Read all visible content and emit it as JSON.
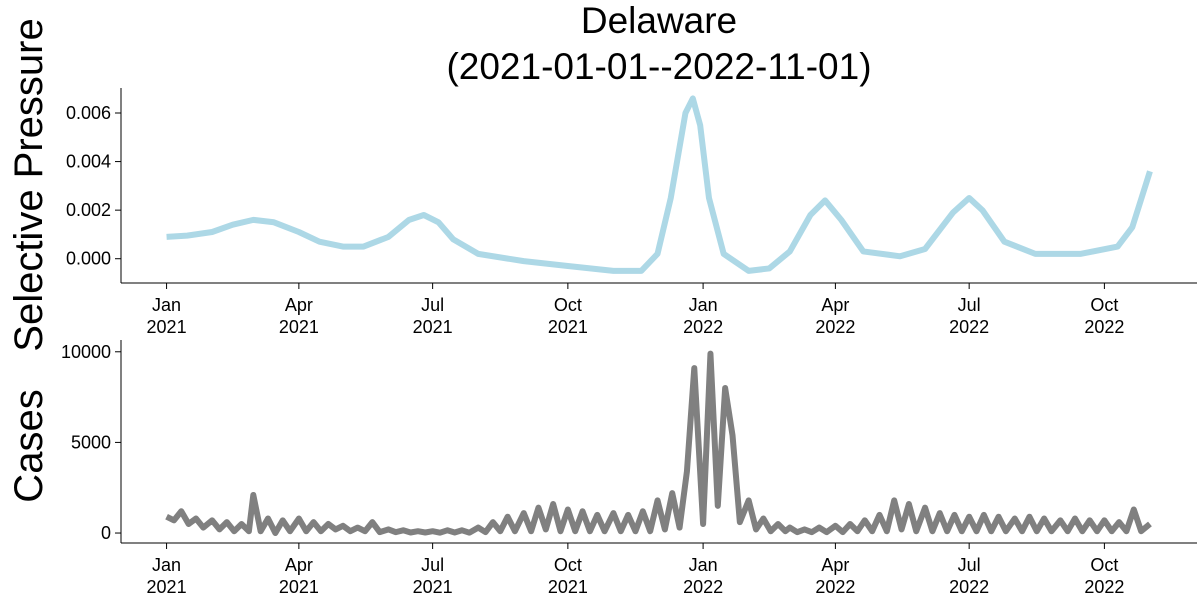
{
  "chart_data": [
    {
      "type": "line",
      "title": "Delaware",
      "subtitle": "(2021-01-01--2022-11-01)",
      "ylabel": "Selective Pressure",
      "color": "#add8e6",
      "x": [
        "2021-01-01",
        "2021-01-15",
        "2021-02-01",
        "2021-02-15",
        "2021-03-01",
        "2021-03-15",
        "2021-04-01",
        "2021-04-15",
        "2021-05-01",
        "2021-05-15",
        "2021-06-01",
        "2021-06-15",
        "2021-06-25",
        "2021-07-05",
        "2021-07-15",
        "2021-08-01",
        "2021-09-01",
        "2021-10-01",
        "2021-11-01",
        "2021-11-20",
        "2021-12-01",
        "2021-12-10",
        "2021-12-20",
        "2021-12-25",
        "2021-12-30",
        "2022-01-05",
        "2022-01-15",
        "2022-02-01",
        "2022-02-15",
        "2022-03-01",
        "2022-03-15",
        "2022-03-25",
        "2022-04-05",
        "2022-04-20",
        "2022-05-15",
        "2022-06-01",
        "2022-06-20",
        "2022-07-01",
        "2022-07-10",
        "2022-07-25",
        "2022-08-15",
        "2022-09-15",
        "2022-10-10",
        "2022-10-20",
        "2022-11-01"
      ],
      "values": [
        0.0009,
        0.00095,
        0.0011,
        0.0014,
        0.0016,
        0.0015,
        0.0011,
        0.0007,
        0.0005,
        0.0005,
        0.0009,
        0.0016,
        0.0018,
        0.0015,
        0.0008,
        0.0002,
        -0.0001,
        -0.0003,
        -0.0005,
        -0.0005,
        0.0002,
        0.0025,
        0.006,
        0.0066,
        0.0055,
        0.0025,
        0.0002,
        -0.0005,
        -0.0004,
        0.0003,
        0.0018,
        0.0024,
        0.0016,
        0.0003,
        0.0001,
        0.0004,
        0.0019,
        0.0025,
        0.002,
        0.0007,
        0.0002,
        0.0002,
        0.0005,
        0.0013,
        0.0036
      ],
      "xlim": [
        "2020-12-01",
        "2022-12-03"
      ],
      "xticks": [
        {
          "value": "2021-01-01",
          "label": "Jan 2021"
        },
        {
          "value": "2021-04-01",
          "label": "Apr 2021"
        },
        {
          "value": "2021-07-01",
          "label": "Jul 2021"
        },
        {
          "value": "2021-10-01",
          "label": "Oct 2021"
        },
        {
          "value": "2022-01-01",
          "label": "Jan 2022"
        },
        {
          "value": "2022-04-01",
          "label": "Apr 2022"
        },
        {
          "value": "2022-07-01",
          "label": "Jul 2022"
        },
        {
          "value": "2022-10-01",
          "label": "Oct 2022"
        }
      ],
      "ylim": [
        -0.001,
        0.00703
      ],
      "yticks": [
        {
          "value": 0,
          "label": "0.000"
        },
        {
          "value": 0.002,
          "label": "0.002"
        },
        {
          "value": 0.004,
          "label": "0.004"
        },
        {
          "value": 0.006,
          "label": "0.006"
        }
      ]
    },
    {
      "type": "line",
      "ylabel": "Cases",
      "color": "#808080",
      "x": [
        "2021-01-01",
        "2021-01-06",
        "2021-01-11",
        "2021-01-16",
        "2021-01-21",
        "2021-01-26",
        "2021-02-01",
        "2021-02-06",
        "2021-02-11",
        "2021-02-16",
        "2021-02-21",
        "2021-02-26",
        "2021-03-01",
        "2021-03-06",
        "2021-03-11",
        "2021-03-16",
        "2021-03-21",
        "2021-03-26",
        "2021-04-01",
        "2021-04-06",
        "2021-04-11",
        "2021-04-16",
        "2021-04-21",
        "2021-04-26",
        "2021-05-01",
        "2021-05-06",
        "2021-05-11",
        "2021-05-16",
        "2021-05-21",
        "2021-05-26",
        "2021-06-01",
        "2021-06-06",
        "2021-06-11",
        "2021-06-16",
        "2021-06-21",
        "2021-06-26",
        "2021-07-01",
        "2021-07-06",
        "2021-07-11",
        "2021-07-16",
        "2021-07-21",
        "2021-07-26",
        "2021-08-01",
        "2021-08-06",
        "2021-08-11",
        "2021-08-16",
        "2021-08-21",
        "2021-08-26",
        "2021-09-01",
        "2021-09-06",
        "2021-09-11",
        "2021-09-16",
        "2021-09-21",
        "2021-09-26",
        "2021-10-01",
        "2021-10-06",
        "2021-10-11",
        "2021-10-16",
        "2021-10-21",
        "2021-10-26",
        "2021-11-01",
        "2021-11-06",
        "2021-11-11",
        "2021-11-16",
        "2021-11-21",
        "2021-11-26",
        "2021-12-01",
        "2021-12-06",
        "2021-12-11",
        "2021-12-16",
        "2021-12-21",
        "2021-12-26",
        "2022-01-01",
        "2022-01-06",
        "2022-01-11",
        "2022-01-16",
        "2022-01-21",
        "2022-01-26",
        "2022-02-01",
        "2022-02-06",
        "2022-02-11",
        "2022-02-16",
        "2022-02-21",
        "2022-02-26",
        "2022-03-01",
        "2022-03-06",
        "2022-03-11",
        "2022-03-16",
        "2022-03-21",
        "2022-03-26",
        "2022-04-01",
        "2022-04-06",
        "2022-04-11",
        "2022-04-16",
        "2022-04-21",
        "2022-04-26",
        "2022-05-01",
        "2022-05-06",
        "2022-05-11",
        "2022-05-16",
        "2022-05-21",
        "2022-05-26",
        "2022-06-01",
        "2022-06-06",
        "2022-06-11",
        "2022-06-16",
        "2022-06-21",
        "2022-06-26",
        "2022-07-01",
        "2022-07-06",
        "2022-07-11",
        "2022-07-16",
        "2022-07-21",
        "2022-07-26",
        "2022-08-01",
        "2022-08-06",
        "2022-08-11",
        "2022-08-16",
        "2022-08-21",
        "2022-08-26",
        "2022-09-01",
        "2022-09-06",
        "2022-09-11",
        "2022-09-16",
        "2022-09-21",
        "2022-09-26",
        "2022-10-01",
        "2022-10-06",
        "2022-10-11",
        "2022-10-16",
        "2022-10-21",
        "2022-10-26",
        "2022-11-01"
      ],
      "values": [
        900,
        700,
        1200,
        500,
        800,
        300,
        700,
        200,
        600,
        100,
        500,
        100,
        2100,
        100,
        800,
        0,
        700,
        100,
        800,
        100,
        600,
        100,
        500,
        200,
        400,
        100,
        300,
        100,
        600,
        50,
        200,
        50,
        150,
        30,
        100,
        30,
        100,
        20,
        150,
        30,
        150,
        20,
        300,
        50,
        600,
        100,
        900,
        100,
        1100,
        100,
        1400,
        200,
        1600,
        100,
        1300,
        100,
        1200,
        100,
        1000,
        100,
        1100,
        100,
        1000,
        100,
        1200,
        100,
        1800,
        200,
        2200,
        300,
        3400,
        9100,
        500,
        9900,
        1500,
        8000,
        5400,
        600,
        1800,
        200,
        800,
        100,
        500,
        100,
        300,
        50,
        200,
        50,
        300,
        50,
        400,
        50,
        500,
        100,
        700,
        100,
        1000,
        100,
        1800,
        200,
        1600,
        100,
        1400,
        100,
        1100,
        100,
        1000,
        100,
        900,
        100,
        1000,
        100,
        900,
        100,
        800,
        100,
        900,
        100,
        800,
        100,
        700,
        100,
        800,
        100,
        700,
        100,
        700,
        100,
        600,
        100,
        1300,
        100,
        500
      ],
      "xlim": [
        "2020-12-01",
        "2022-12-03"
      ],
      "xticks": [
        {
          "value": "2021-01-01",
          "label": "Jan 2021"
        },
        {
          "value": "2021-04-01",
          "label": "Apr 2021"
        },
        {
          "value": "2021-07-01",
          "label": "Jul 2021"
        },
        {
          "value": "2021-10-01",
          "label": "Oct 2021"
        },
        {
          "value": "2022-01-01",
          "label": "Jan 2022"
        },
        {
          "value": "2022-04-01",
          "label": "Apr 2022"
        },
        {
          "value": "2022-07-01",
          "label": "Jul 2022"
        },
        {
          "value": "2022-10-01",
          "label": "Oct 2022"
        }
      ],
      "ylim": [
        -550,
        10650
      ],
      "yticks": [
        0,
        5000,
        10000
      ]
    }
  ]
}
